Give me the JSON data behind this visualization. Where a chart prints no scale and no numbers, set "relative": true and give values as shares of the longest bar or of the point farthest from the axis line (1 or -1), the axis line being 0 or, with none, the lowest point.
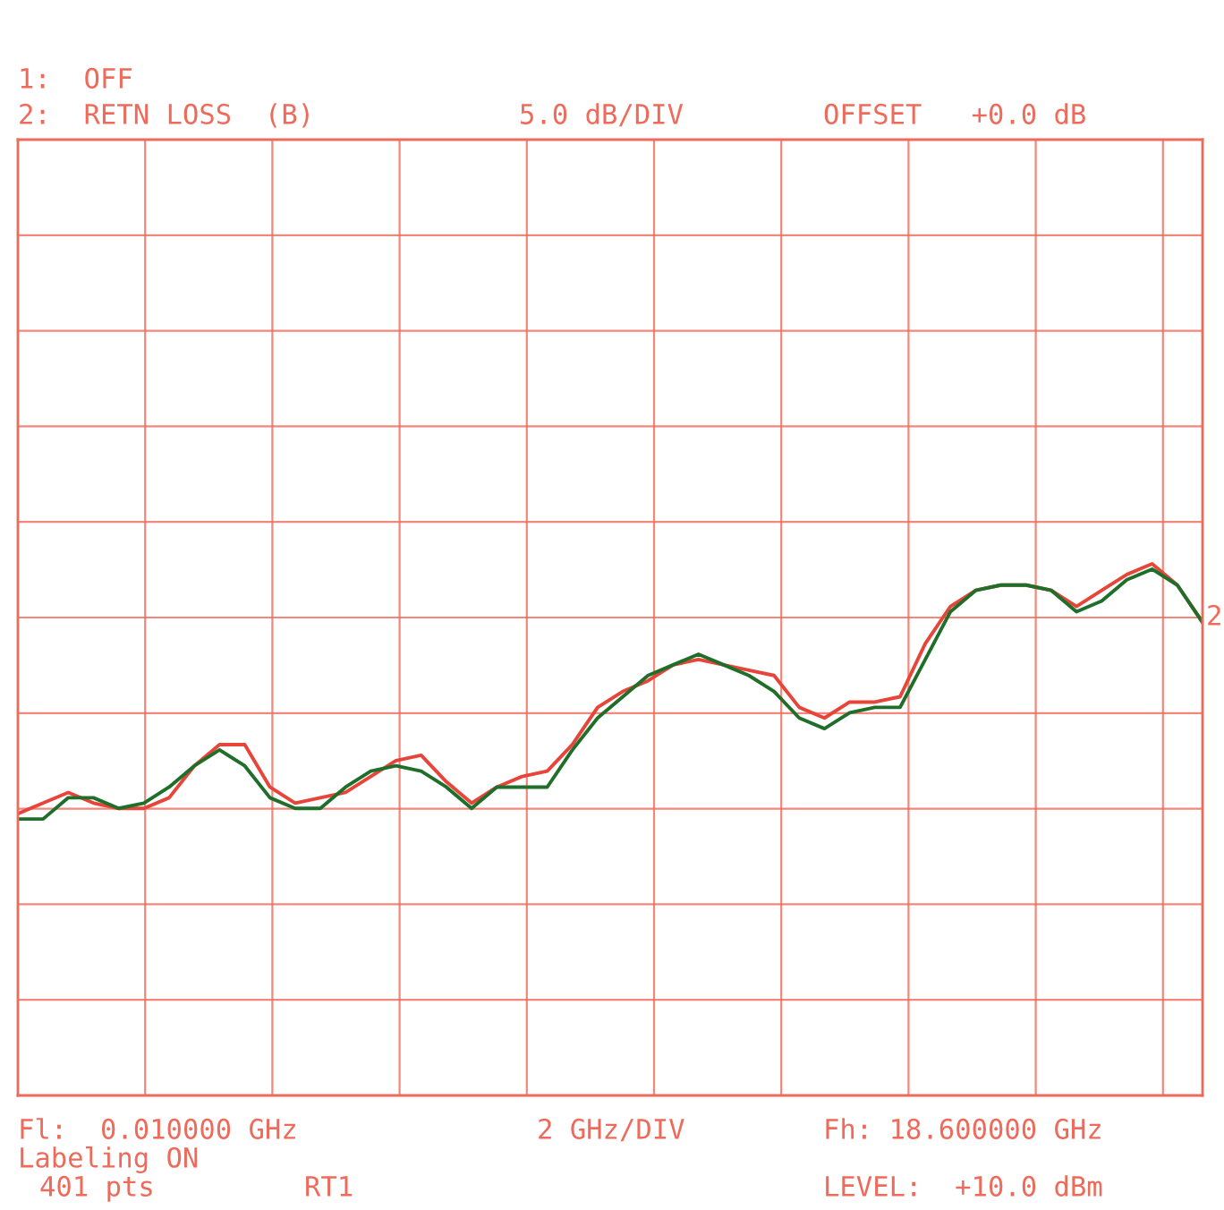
{
  "chart_data": {
    "type": "line",
    "relative": true,
    "annotations": [
      "1:  OFF",
      "2:  RETN LOSS  (B)",
      "5.0 dB/DIV",
      "OFFSET   +0.0 dB",
      "Fl:  0.010000 GHz",
      "2 GHz/DIV",
      "Fh: 18.600000 GHz",
      "Labeling ON",
      "401 pts",
      "RT1",
      "LEVEL:  +10.0 dBm",
      "2"
    ],
    "categories": [
      null,
      null,
      null,
      null,
      null,
      null,
      null,
      null,
      null,
      null,
      null,
      null,
      null,
      null,
      null,
      null,
      null,
      null,
      null,
      null,
      null,
      null,
      null,
      null,
      null,
      null,
      null,
      null,
      null,
      null,
      null,
      null,
      null,
      null,
      null,
      null,
      null,
      null,
      null,
      null,
      null,
      null,
      null,
      null,
      null,
      null,
      null,
      null
    ],
    "grid": true,
    "tick_labels": false,
    "series": [
      {
        "color": "#e8453a",
        "values": [
          0.53,
          0.55,
          0.57,
          0.55,
          0.54,
          0.54,
          0.56,
          0.62,
          0.66,
          0.66,
          0.58,
          0.55,
          0.56,
          0.57,
          0.6,
          0.63,
          0.64,
          0.59,
          0.55,
          0.58,
          0.6,
          0.61,
          0.66,
          0.73,
          0.76,
          0.78,
          0.81,
          0.82,
          0.81,
          0.8,
          0.79,
          0.73,
          0.71,
          0.74,
          0.74,
          0.75,
          0.85,
          0.92,
          0.95,
          0.96,
          0.96,
          0.95,
          0.92,
          0.95,
          0.98,
          1,
          0.96,
          0.89
        ]
      },
      {
        "color": "#1f6e2a",
        "values": [
          0.52,
          0.52,
          0.56,
          0.56,
          0.54,
          0.55,
          0.58,
          0.62,
          0.65,
          0.62,
          0.56,
          0.54,
          0.54,
          0.58,
          0.61,
          0.62,
          0.61,
          0.58,
          0.54,
          0.58,
          0.58,
          0.58,
          0.65,
          0.71,
          0.75,
          0.79,
          0.81,
          0.83,
          0.81,
          0.79,
          0.76,
          0.71,
          0.69,
          0.72,
          0.73,
          0.73,
          0.82,
          0.91,
          0.95,
          0.96,
          0.96,
          0.95,
          0.91,
          0.93,
          0.97,
          0.99,
          0.96,
          0.89
        ]
      }
    ]
  }
}
